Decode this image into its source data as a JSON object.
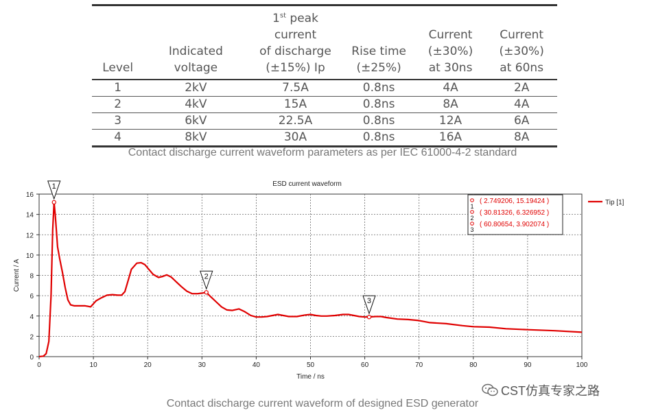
{
  "table": {
    "headers": [
      "Level",
      "Indicated voltage",
      "1st peak current of discharge (±15%) Ip",
      "Rise time (±25%)",
      "Current (±30%) at 30ns",
      "Current (±30%) at 60ns"
    ],
    "rows": [
      [
        "1",
        "2kV",
        "7.5A",
        "0.8ns",
        "4A",
        "2A"
      ],
      [
        "2",
        "4kV",
        "15A",
        "0.8ns",
        "8A",
        "4A"
      ],
      [
        "3",
        "6kV",
        "22.5A",
        "0.8ns",
        "12A",
        "6A"
      ],
      [
        "4",
        "8kV",
        "30A",
        "0.8ns",
        "16A",
        "8A"
      ]
    ]
  },
  "caption1": "Contact discharge current waveform parameters as per IEC 61000-4-2 standard",
  "caption2": "Contact discharge current waveform of designed ESD generator",
  "watermark": "CST仿真专家之路",
  "chart_data": {
    "type": "line",
    "title": "ESD current waveform",
    "xlabel": "Time / ns",
    "ylabel": "Current / A",
    "xlim": [
      0,
      100
    ],
    "ylim": [
      0,
      16
    ],
    "xticks": [
      0,
      10,
      20,
      30,
      40,
      50,
      60,
      70,
      80,
      90,
      100
    ],
    "yticks": [
      0,
      2,
      4,
      6,
      8,
      10,
      12,
      14,
      16
    ],
    "grid": true,
    "legend_position": "top-right",
    "series": [
      {
        "name": "Tip [1]",
        "color": "#e00000",
        "x": [
          0,
          0.8,
          1.3,
          1.8,
          2.2,
          2.5,
          2.75,
          3.0,
          3.4,
          3.8,
          4.3,
          4.8,
          5.3,
          5.8,
          6.5,
          7.5,
          8.5,
          9.5,
          10.5,
          11.5,
          12.5,
          13.5,
          14.5,
          15.2,
          15.8,
          16.3,
          17.0,
          18.0,
          18.8,
          19.5,
          20.2,
          21.0,
          22.0,
          22.8,
          23.5,
          24.3,
          25.2,
          26.2,
          27.2,
          28.2,
          29.2,
          30.0,
          30.8,
          31.6,
          32.6,
          33.6,
          34.6,
          35.6,
          36.8,
          37.8,
          39.0,
          40.0,
          41.0,
          42.0,
          43.0,
          44.0,
          45.0,
          46.0,
          47.5,
          49.0,
          50.0,
          51.0,
          52.0,
          53.0,
          54.5,
          56.0,
          57.0,
          58.0,
          59.0,
          60.0,
          60.8,
          62.0,
          63.0,
          64.0,
          66.0,
          68.0,
          70.0,
          72.0,
          75.0,
          78.0,
          80.0,
          83.0,
          86.0,
          90.0,
          95.0,
          100.0
        ],
        "y": [
          0,
          0.05,
          0.3,
          1.5,
          6.0,
          12.5,
          15.19,
          13.8,
          10.8,
          9.6,
          8.3,
          6.8,
          5.6,
          5.1,
          5.0,
          5.0,
          5.0,
          4.9,
          5.5,
          5.8,
          6.05,
          6.1,
          6.05,
          6.05,
          6.4,
          7.3,
          8.6,
          9.2,
          9.25,
          9.05,
          8.6,
          8.1,
          7.8,
          7.9,
          8.05,
          7.85,
          7.4,
          6.9,
          6.45,
          6.2,
          6.2,
          6.25,
          6.33,
          5.9,
          5.4,
          4.9,
          4.6,
          4.55,
          4.7,
          4.45,
          4.05,
          3.9,
          3.9,
          3.95,
          4.05,
          4.15,
          4.05,
          3.95,
          3.95,
          4.1,
          4.15,
          4.05,
          4.0,
          4.0,
          4.05,
          4.15,
          4.15,
          4.05,
          3.95,
          3.9,
          3.9,
          3.95,
          3.95,
          3.85,
          3.7,
          3.65,
          3.55,
          3.35,
          3.25,
          3.05,
          2.95,
          2.9,
          2.75,
          2.65,
          2.55,
          2.4
        ]
      }
    ],
    "markers": [
      {
        "label": "1",
        "x": 2.749206,
        "y": 15.19424,
        "text": "( 2.749206, 15.19424 )"
      },
      {
        "label": "2",
        "x": 30.81326,
        "y": 6.326952,
        "text": "( 30.81326, 6.326952 )"
      },
      {
        "label": "3",
        "x": 60.80654,
        "y": 3.902074,
        "text": "( 60.80654, 3.902074 )"
      }
    ]
  }
}
